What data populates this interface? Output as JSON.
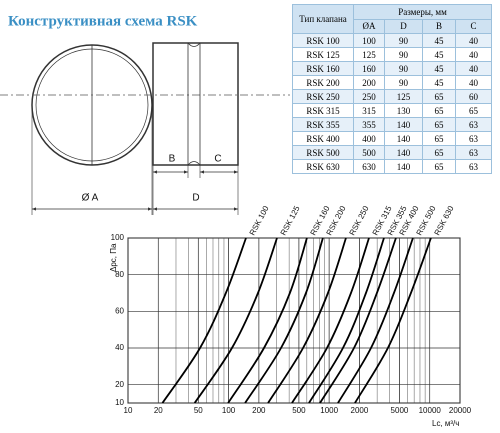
{
  "drawing": {
    "title": "Конструктивная схема RSK",
    "labels": [
      "B",
      "C",
      "Ø A",
      "D"
    ]
  },
  "table": {
    "header": [
      "Тип клапана",
      "Размеры, мм"
    ],
    "subheader": [
      "ØA",
      "D",
      "B",
      "C"
    ],
    "rows": [
      [
        "RSK 100",
        100,
        90,
        45,
        40
      ],
      [
        "RSK 125",
        125,
        90,
        45,
        40
      ],
      [
        "RSK 160",
        160,
        90,
        45,
        40
      ],
      [
        "RSK 200",
        200,
        90,
        45,
        40
      ],
      [
        "RSK 250",
        250,
        125,
        65,
        60
      ],
      [
        "RSK 315",
        315,
        130,
        65,
        65
      ],
      [
        "RSK 355",
        355,
        140,
        65,
        63
      ],
      [
        "RSK 400",
        400,
        140,
        65,
        63
      ],
      [
        "RSK 500",
        500,
        140,
        65,
        63
      ],
      [
        "RSK 630",
        630,
        140,
        65,
        63
      ]
    ]
  },
  "chart_data": {
    "type": "line",
    "xlabel": "Lc, м³/ч",
    "ylabel": "Δpc, Па",
    "xscale": "log",
    "xlim": [
      10,
      20000
    ],
    "xticks": [
      10,
      20,
      50,
      100,
      200,
      500,
      1000,
      2000,
      5000,
      10000,
      20000
    ],
    "ylim": [
      10,
      100
    ],
    "yticks": [
      10,
      20,
      40,
      60,
      80,
      100
    ],
    "grid": true,
    "color": "#000000",
    "series": [
      {
        "name": "RSK 100",
        "x": [
          22,
          52,
          94,
          149
        ],
        "values": [
          10,
          40,
          70,
          100
        ]
      },
      {
        "name": "RSK 125",
        "x": [
          46,
          108,
          196,
          303
        ],
        "values": [
          10,
          40,
          70,
          100
        ]
      },
      {
        "name": "RSK 160",
        "x": [
          99,
          225,
          407,
          601
        ],
        "values": [
          10,
          40,
          70,
          100
        ]
      },
      {
        "name": "RSK 200",
        "x": [
          146,
          332,
          588,
          867
        ],
        "values": [
          10,
          40,
          70,
          100
        ]
      },
      {
        "name": "RSK 250",
        "x": [
          247,
          550,
          973,
          1469
        ],
        "values": [
          10,
          40,
          70,
          100
        ]
      },
      {
        "name": "RSK 315",
        "x": [
          427,
          951,
          1648,
          2489
        ],
        "values": [
          10,
          40,
          70,
          100
        ]
      },
      {
        "name": "RSK 355",
        "x": [
          630,
          1371,
          2323,
          3508
        ],
        "values": [
          10,
          40,
          70,
          100
        ]
      },
      {
        "name": "RSK 400",
        "x": [
          811,
          1766,
          2985,
          4613
        ],
        "values": [
          10,
          40,
          70,
          100
        ]
      },
      {
        "name": "RSK 500",
        "x": [
          1223,
          2606,
          4407,
          6808
        ],
        "values": [
          10,
          40,
          70,
          100
        ]
      },
      {
        "name": "RSK 630",
        "x": [
          1804,
          3837,
          6501,
          10280
        ],
        "values": [
          10,
          40,
          70,
          100
        ]
      }
    ]
  }
}
